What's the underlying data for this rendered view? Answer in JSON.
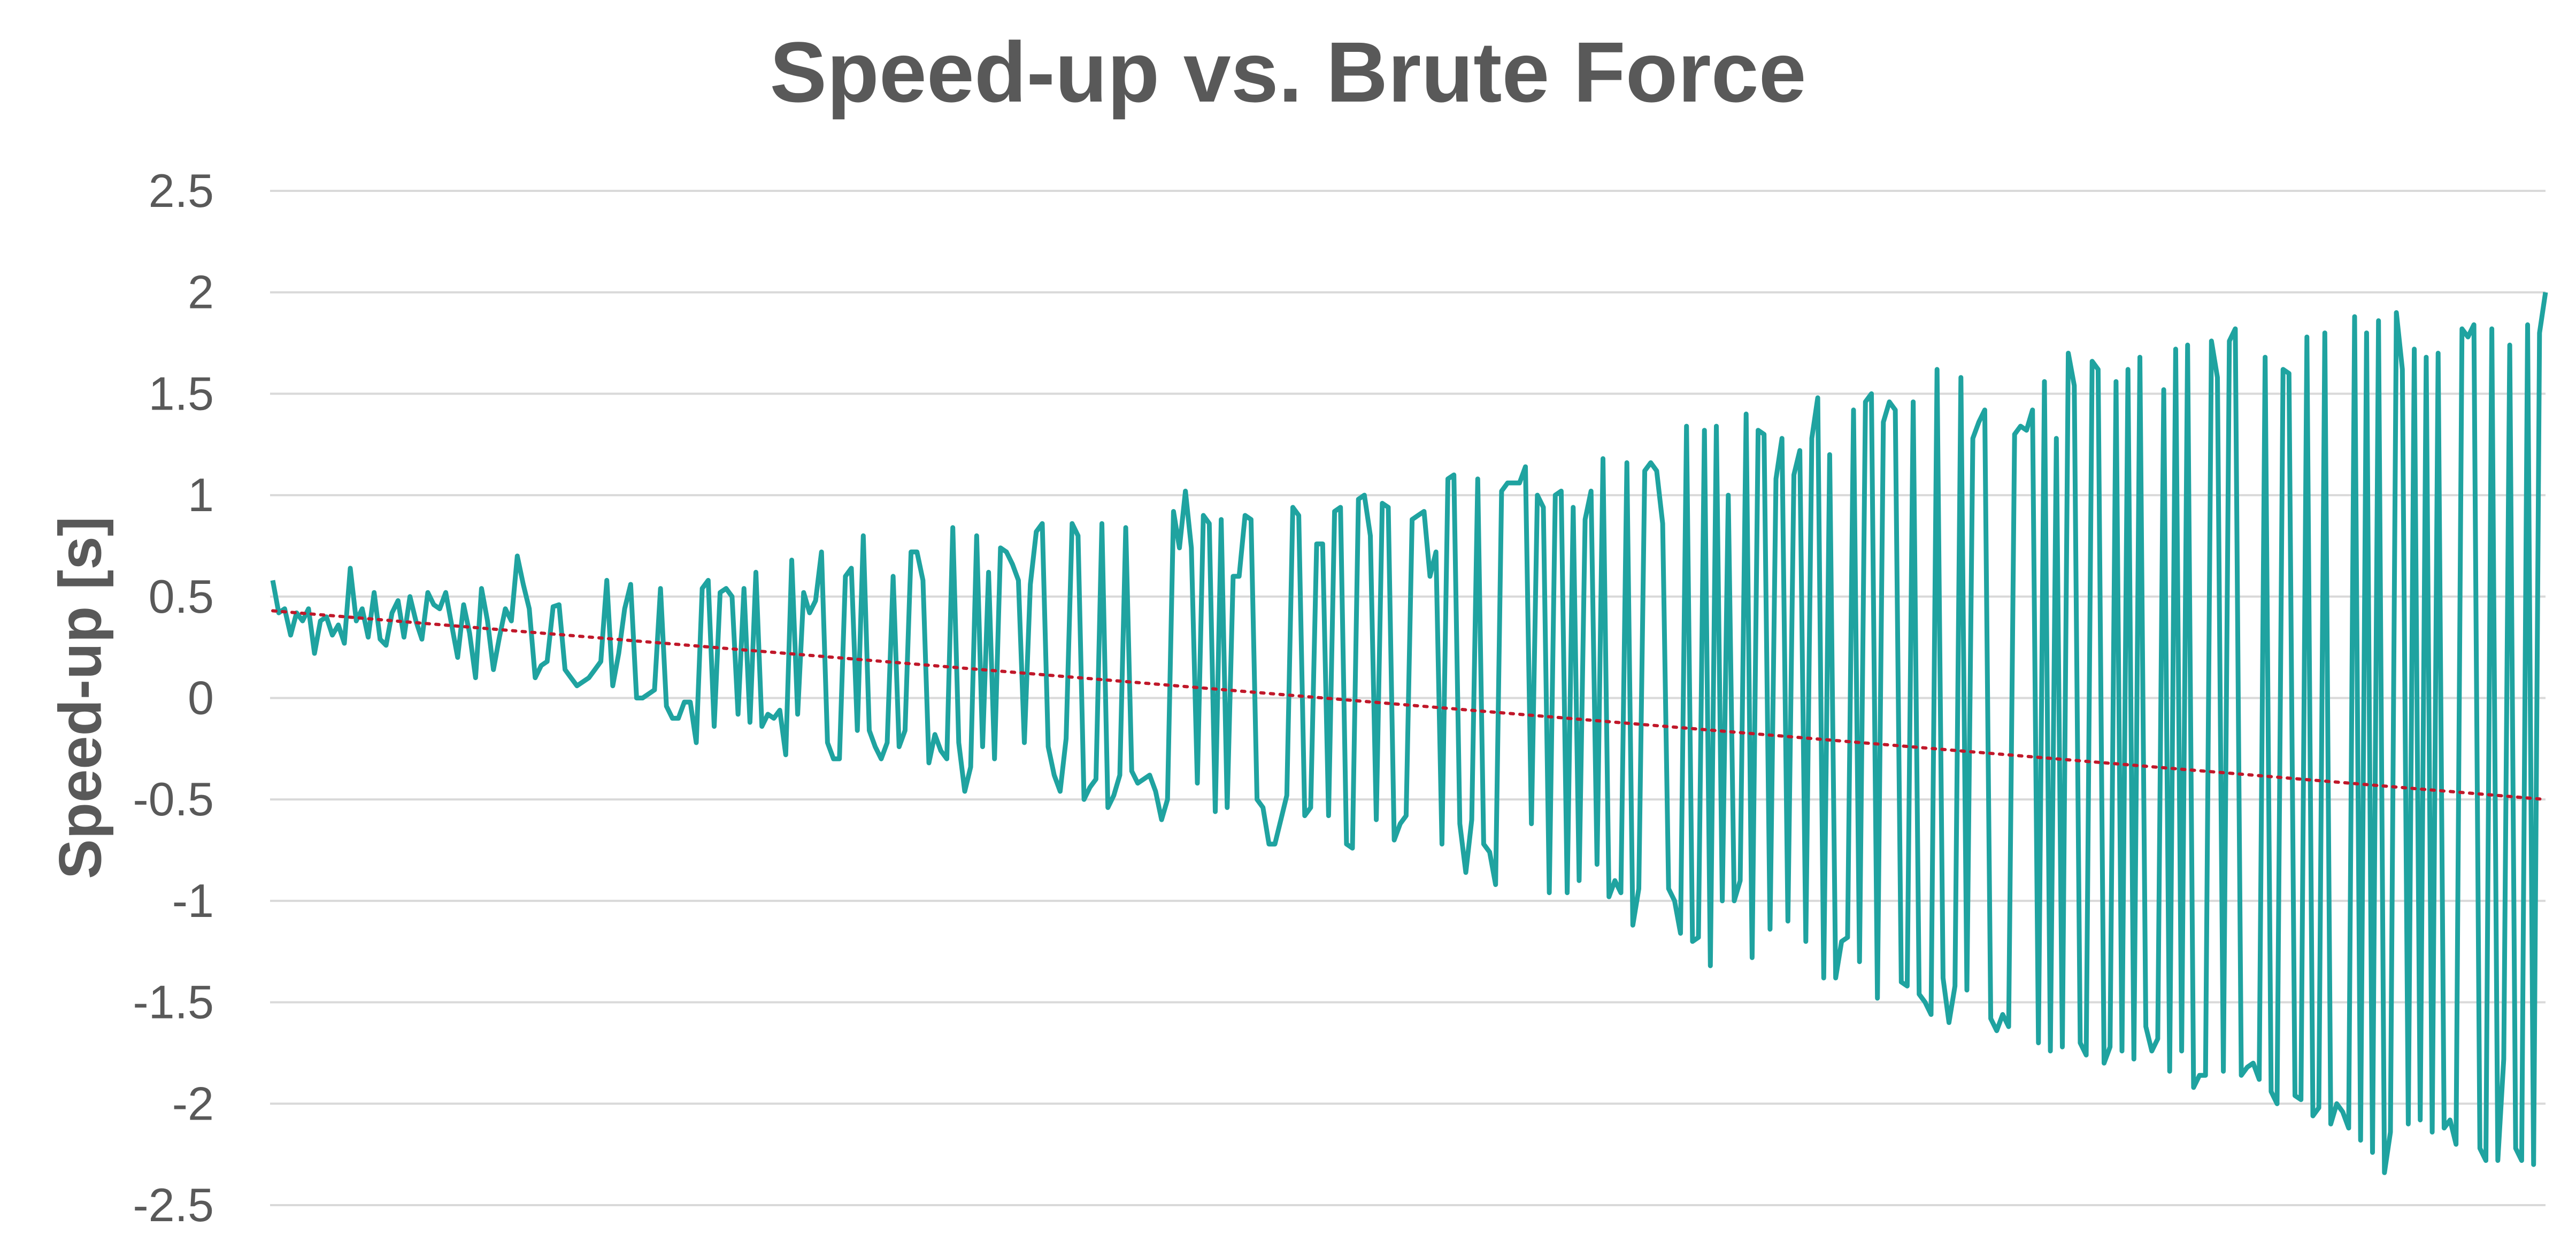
{
  "chart_data": {
    "type": "line",
    "title": "Speed-up vs. Brute Force",
    "xlabel": "",
    "ylabel": "Speed-up [s]",
    "ylim": [
      -2.5,
      2.5
    ],
    "yticks": [
      "2.5",
      "2",
      "1.5",
      "1",
      "0.5",
      "0",
      "-0.5",
      "-1",
      "-1.5",
      "-2",
      "-2.5"
    ],
    "grid": true,
    "legend": "none",
    "x_start": 1,
    "colors": {
      "series": "#1fa3a0",
      "trendline": "#c0182a",
      "grid": "#d9d9d9",
      "text": "#595959"
    },
    "trendline": {
      "type": "linear",
      "style": "dotted",
      "start": 0.43,
      "end": -0.5
    },
    "series": [
      {
        "values": [
          0.58,
          0.42,
          0.44,
          0.31,
          0.42,
          0.38,
          0.44,
          0.22,
          0.38,
          0.4,
          0.31,
          0.36,
          0.27,
          0.64,
          0.38,
          0.44,
          0.3,
          0.52,
          0.29,
          0.26,
          0.42,
          0.48,
          0.3,
          0.5,
          0.38,
          0.29,
          0.52,
          0.46,
          0.44,
          0.52,
          0.36,
          0.2,
          0.46,
          0.32,
          0.1,
          0.54,
          0.38,
          0.14,
          0.3,
          0.44,
          0.38,
          0.7,
          0.56,
          0.44,
          0.1,
          0.16,
          0.18,
          0.45,
          0.46,
          0.14,
          0.1,
          0.06,
          0.08,
          0.1,
          0.14,
          0.18,
          0.58,
          0.06,
          0.22,
          0.44,
          0.56,
          0.0,
          0.0,
          0.02,
          0.04,
          0.54,
          -0.04,
          -0.1,
          -0.1,
          -0.02,
          -0.02,
          -0.22,
          0.54,
          0.58,
          -0.14,
          0.52,
          0.54,
          0.5,
          -0.08,
          0.54,
          -0.12,
          0.62,
          -0.14,
          -0.08,
          -0.1,
          -0.06,
          -0.28,
          0.68,
          -0.08,
          0.52,
          0.42,
          0.48,
          0.72,
          -0.22,
          -0.3,
          -0.3,
          0.6,
          0.64,
          -0.16,
          0.8,
          -0.16,
          -0.24,
          -0.3,
          -0.22,
          0.6,
          -0.24,
          -0.16,
          0.72,
          0.72,
          0.58,
          -0.32,
          -0.18,
          -0.26,
          -0.3,
          0.84,
          -0.22,
          -0.46,
          -0.34,
          0.8,
          -0.24,
          0.62,
          -0.3,
          0.74,
          0.72,
          0.66,
          0.58,
          -0.22,
          0.56,
          0.82,
          0.86,
          -0.24,
          -0.38,
          -0.46,
          -0.2,
          0.86,
          0.8,
          -0.5,
          -0.44,
          -0.4,
          0.86,
          -0.54,
          -0.48,
          -0.38,
          0.84,
          -0.36,
          -0.42,
          -0.4,
          -0.38,
          -0.46,
          -0.6,
          -0.5,
          0.92,
          0.74,
          1.02,
          0.74,
          -0.42,
          0.9,
          0.86,
          -0.56,
          0.88,
          -0.54,
          0.6,
          0.6,
          0.9,
          0.88,
          -0.5,
          -0.54,
          -0.72,
          -0.72,
          -0.6,
          -0.48,
          0.94,
          0.9,
          -0.58,
          -0.54,
          0.76,
          0.76,
          -0.58,
          0.92,
          0.94,
          -0.72,
          -0.74,
          0.98,
          1.0,
          0.8,
          -0.6,
          0.96,
          0.94,
          -0.7,
          -0.62,
          -0.58,
          0.88,
          0.9,
          0.92,
          0.6,
          0.72,
          -0.72,
          1.08,
          1.1,
          -0.62,
          -0.86,
          -0.6,
          1.08,
          -0.72,
          -0.76,
          -0.92,
          1.02,
          1.06,
          1.06,
          1.06,
          1.14,
          -0.62,
          1.0,
          0.94,
          -0.96,
          1.0,
          1.02,
          -0.96,
          0.94,
          -0.9,
          0.88,
          1.02,
          -0.82,
          1.18,
          -0.98,
          -0.9,
          -0.96,
          1.16,
          -1.12,
          -0.94,
          1.12,
          1.16,
          1.12,
          0.86,
          -0.94,
          -1.0,
          -1.16,
          1.34,
          -1.2,
          -1.18,
          1.32,
          -1.32,
          1.34,
          -1.0,
          1.0,
          -1.0,
          -0.9,
          1.4,
          -1.28,
          1.32,
          1.3,
          -1.14,
          1.08,
          1.28,
          -1.1,
          1.1,
          1.22,
          -1.2,
          1.28,
          1.48,
          -1.38,
          1.2,
          -1.38,
          -1.2,
          -1.18,
          1.42,
          -1.3,
          1.46,
          1.5,
          -1.48,
          1.36,
          1.46,
          1.42,
          -1.4,
          -1.42,
          1.46,
          -1.46,
          -1.5,
          -1.56,
          1.62,
          -1.38,
          -1.6,
          -1.42,
          1.58,
          -1.44,
          1.28,
          1.36,
          1.42,
          -1.58,
          -1.64,
          -1.56,
          -1.62,
          1.3,
          1.34,
          1.32,
          1.42,
          -1.7,
          1.56,
          -1.74,
          1.28,
          -1.72,
          1.7,
          1.54,
          -1.7,
          -1.76,
          1.66,
          1.62,
          -1.8,
          -1.72,
          1.56,
          -1.74,
          1.62,
          -1.78,
          1.68,
          -1.62,
          -1.74,
          -1.68,
          1.52,
          -1.84,
          1.72,
          -1.74,
          1.74,
          -1.92,
          -1.86,
          -1.86,
          1.76,
          1.58,
          -1.84,
          1.76,
          1.82,
          -1.86,
          -1.82,
          -1.8,
          -1.88,
          1.68,
          -1.94,
          -2.0,
          1.62,
          1.6,
          -1.96,
          -1.98,
          1.78,
          -2.06,
          -2.02,
          1.8,
          -2.1,
          -2.0,
          -2.04,
          -2.12,
          1.88,
          -2.18,
          1.8,
          -2.24,
          1.86,
          -2.34,
          -2.14,
          1.9,
          1.62,
          -2.1,
          1.72,
          -2.08,
          1.68,
          -2.14,
          1.7,
          -2.12,
          -2.08,
          -2.2,
          1.82,
          1.78,
          1.84,
          -2.22,
          -2.28,
          1.82,
          -2.28,
          -1.78,
          1.74,
          -2.22,
          -2.28,
          1.84,
          -2.3,
          1.8,
          2.0
        ]
      }
    ]
  }
}
